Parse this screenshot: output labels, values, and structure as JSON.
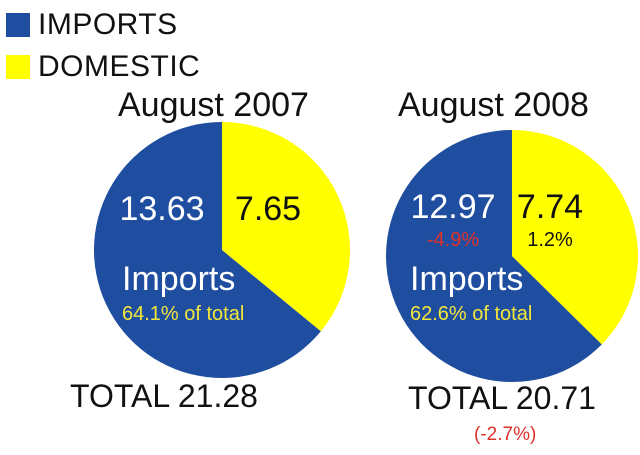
{
  "legend": [
    {
      "label": "IMPORTS",
      "color": "#1f4ea1"
    },
    {
      "label": "DOMESTIC",
      "color": "#ffff00"
    }
  ],
  "colors": {
    "imports": "#1f4ea1",
    "domestic": "#ffff00",
    "negative": "#e0302a",
    "imports_share": "#f3e63a"
  },
  "chart_data": [
    {
      "type": "pie",
      "title": "August 2007",
      "slices": [
        {
          "name": "Imports",
          "value": 13.63,
          "change": ""
        },
        {
          "name": "Domestic",
          "value": 7.65,
          "change": ""
        }
      ],
      "imports_label": "Imports",
      "imports_share": "64.1% of total",
      "imports_value_text": "13.63",
      "domestic_value_text": "7.65",
      "imports_change_text": "",
      "domestic_change_text": "",
      "total_text": "TOTAL 21.28",
      "total_change_text": ""
    },
    {
      "type": "pie",
      "title": "August 2008",
      "slices": [
        {
          "name": "Imports",
          "value": 12.97,
          "change": "-4.9%"
        },
        {
          "name": "Domestic",
          "value": 7.74,
          "change": "1.2%"
        }
      ],
      "imports_label": "Imports",
      "imports_share": "62.6% of total",
      "imports_value_text": "12.97",
      "domestic_value_text": "7.74",
      "imports_change_text": "-4.9%",
      "domestic_change_text": "1.2%",
      "total_text": "TOTAL 20.71",
      "total_change_text": "(-2.7%)"
    }
  ]
}
